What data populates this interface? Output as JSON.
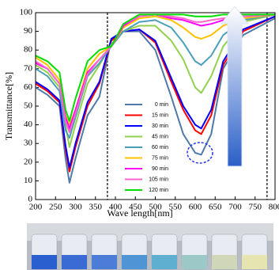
{
  "chart_data": {
    "type": "line",
    "x_label": "Wave length[nm]",
    "y_label": "Transmittance[%]",
    "x": [
      200,
      230,
      260,
      275,
      285,
      300,
      330,
      360,
      390,
      420,
      460,
      500,
      540,
      570,
      600,
      615,
      640,
      670,
      720,
      800
    ],
    "xlim": [
      200,
      800
    ],
    "xticks": [
      200,
      250,
      300,
      350,
      400,
      450,
      500,
      550,
      600,
      650,
      700,
      750,
      800
    ],
    "ylim": [
      0,
      100
    ],
    "yticks": [
      0,
      10,
      20,
      30,
      40,
      50,
      60,
      70,
      80,
      90,
      100
    ],
    "vlines": [
      380,
      780
    ],
    "series": [
      {
        "name": "0 min",
        "color": "#4f7aa8",
        "values": [
          60,
          56,
          50,
          22,
          9,
          22,
          45,
          55,
          86,
          90,
          90,
          80,
          55,
          35,
          25,
          24,
          35,
          70,
          88,
          97
        ]
      },
      {
        "name": "15 min",
        "color": "#ff0000",
        "values": [
          62,
          58,
          52,
          27,
          15,
          28,
          50,
          62,
          85,
          90,
          91,
          84,
          63,
          48,
          37,
          35,
          45,
          72,
          90,
          98
        ]
      },
      {
        "name": "30 min",
        "color": "#0000ff",
        "values": [
          63,
          59,
          53,
          29,
          17,
          30,
          52,
          63,
          86,
          90,
          91,
          85,
          65,
          50,
          40,
          38,
          48,
          74,
          91,
          98
        ]
      },
      {
        "name": "45 min",
        "color": "#92d050",
        "values": [
          72,
          68,
          60,
          40,
          28,
          40,
          62,
          72,
          83,
          90,
          93,
          93,
          85,
          75,
          60,
          57,
          66,
          82,
          95,
          99
        ]
      },
      {
        "name": "60 min",
        "color": "#4aa0b8",
        "values": [
          70,
          66,
          58,
          37,
          33,
          44,
          66,
          73,
          82,
          90,
          95,
          96,
          92,
          84,
          74,
          72,
          77,
          88,
          96,
          99
        ]
      },
      {
        "name": "75 min",
        "color": "#ffc000",
        "values": [
          76,
          72,
          64,
          45,
          40,
          48,
          70,
          78,
          82,
          92,
          97,
          98,
          96,
          92,
          87,
          86,
          88,
          93,
          97,
          99
        ]
      },
      {
        "name": "90 min",
        "color": "#ff00ff",
        "values": [
          73,
          70,
          62,
          44,
          38,
          48,
          68,
          75,
          82,
          93,
          98,
          99,
          97,
          96,
          94,
          93,
          94,
          96,
          98,
          99
        ]
      },
      {
        "name": "105 min",
        "color": "#ff66cc",
        "values": [
          74,
          70,
          62,
          42,
          36,
          46,
          67,
          75,
          82,
          94,
          98,
          99,
          98,
          97,
          95,
          95,
          96,
          97,
          98,
          99
        ]
      },
      {
        "name": "120 min",
        "color": "#00dd00",
        "values": [
          77,
          74,
          68,
          48,
          42,
          54,
          74,
          80,
          82,
          94,
          99,
          99,
          99,
          99,
          98,
          98,
          98,
          99,
          99,
          99
        ]
      }
    ]
  }
}
